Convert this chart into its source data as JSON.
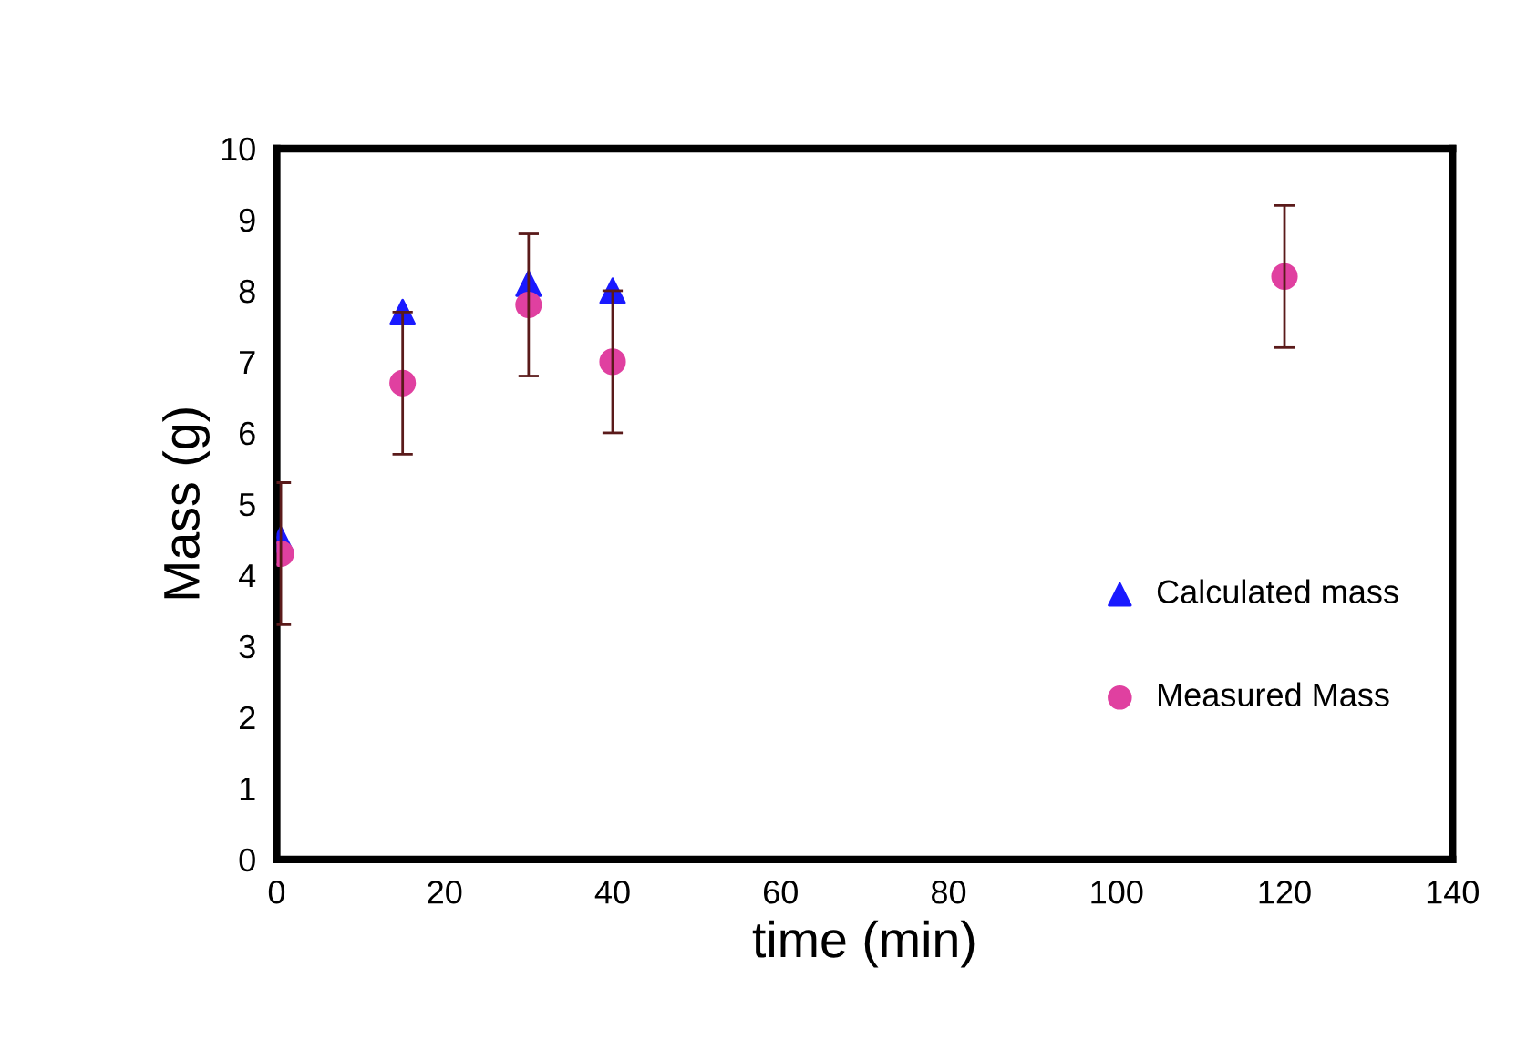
{
  "chart_data": {
    "type": "scatter",
    "xlabel": "time (min)",
    "ylabel": "Mass (g)",
    "xlim": [
      0,
      140
    ],
    "xticks": [
      0,
      20,
      40,
      60,
      80,
      100,
      120,
      140
    ],
    "ylim": [
      0,
      10
    ],
    "yticks": [
      0,
      1,
      2,
      3,
      4,
      5,
      6,
      7,
      8,
      9,
      10
    ],
    "series": [
      {
        "name": "Calculated mass",
        "color": "#1a1aff",
        "marker": "triangle",
        "x": [
          0.5,
          15,
          30,
          40
        ],
        "values": [
          4.5,
          7.7,
          8.1,
          8.0
        ]
      },
      {
        "name": "Measured Mass",
        "color": "#e040a0",
        "marker": "circle",
        "x": [
          0.5,
          15,
          30,
          40,
          120
        ],
        "values": [
          4.3,
          6.7,
          7.8,
          7.0,
          8.2
        ],
        "errors": [
          1,
          1,
          1,
          1,
          1
        ]
      }
    ],
    "grid": false,
    "legend": "right"
  }
}
